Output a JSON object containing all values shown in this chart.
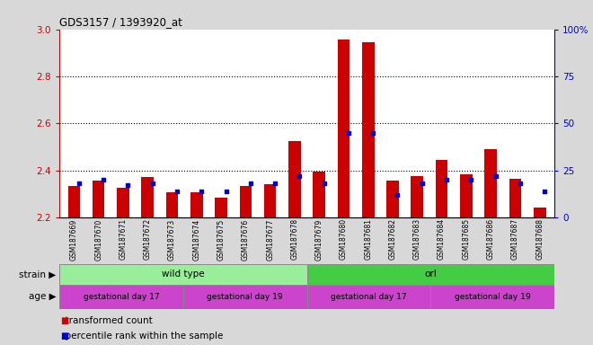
{
  "title": "GDS3157 / 1393920_at",
  "samples": [
    "GSM187669",
    "GSM187670",
    "GSM187671",
    "GSM187672",
    "GSM187673",
    "GSM187674",
    "GSM187675",
    "GSM187676",
    "GSM187677",
    "GSM187678",
    "GSM187679",
    "GSM187680",
    "GSM187681",
    "GSM187682",
    "GSM187683",
    "GSM187684",
    "GSM187685",
    "GSM187686",
    "GSM187687",
    "GSM187688"
  ],
  "red_values": [
    2.335,
    2.355,
    2.325,
    2.37,
    2.305,
    2.305,
    2.285,
    2.335,
    2.34,
    2.525,
    2.395,
    2.955,
    2.945,
    2.355,
    2.375,
    2.445,
    2.385,
    2.49,
    2.365,
    2.24
  ],
  "blue_values": [
    18,
    20,
    17,
    18,
    14,
    14,
    14,
    18,
    18,
    22,
    18,
    45,
    45,
    12,
    18,
    20,
    20,
    22,
    18,
    14
  ],
  "ylim_left": [
    2.2,
    3.0
  ],
  "ylim_right": [
    0,
    100
  ],
  "yticks_left": [
    2.2,
    2.4,
    2.6,
    2.8,
    3.0
  ],
  "yticks_right": [
    0,
    25,
    50,
    75,
    100
  ],
  "grid_lines": [
    2.4,
    2.6,
    2.8
  ],
  "strain_groups": [
    {
      "label": "wild type",
      "start": 0,
      "end": 10,
      "color": "#99ee99"
    },
    {
      "label": "orl",
      "start": 10,
      "end": 20,
      "color": "#44cc44"
    }
  ],
  "age_groups": [
    {
      "label": "gestational day 17",
      "start": 0,
      "end": 5
    },
    {
      "label": "gestational day 19",
      "start": 5,
      "end": 10
    },
    {
      "label": "gestational day 17",
      "start": 10,
      "end": 15
    },
    {
      "label": "gestational day 19",
      "start": 15,
      "end": 20
    }
  ],
  "age_color": "#cc44cc",
  "legend_red": "transformed count",
  "legend_blue": "percentile rank within the sample",
  "bg_color": "#d8d8d8",
  "panel_bg": "#ffffff",
  "bar_width": 0.5
}
